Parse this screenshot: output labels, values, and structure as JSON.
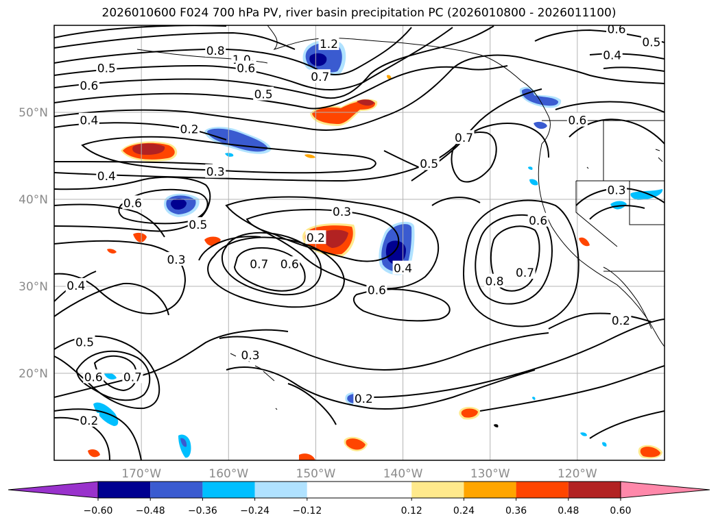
{
  "chart_data": {
    "type": "contour",
    "title": "2026010600 F024 700 hPa PV, river basin precipitation PC (2026010800 - 2026011100)",
    "x_ticks": [
      "170°W",
      "160°W",
      "150°W",
      "140°W",
      "130°W",
      "120°W"
    ],
    "x_tick_values": [
      -170,
      -160,
      -150,
      -140,
      -130,
      -120
    ],
    "y_ticks": [
      "50°N",
      "40°N",
      "30°N",
      "20°N"
    ],
    "y_tick_values": [
      50,
      40,
      30,
      20
    ],
    "xlim": [
      -180,
      -110
    ],
    "ylim": [
      10,
      60
    ],
    "grid": true,
    "contour_labels": [
      {
        "text": "1.0",
        "lon": -158.5,
        "lat": 56.0
      },
      {
        "text": "0.8",
        "lon": -161.5,
        "lat": 57.0
      },
      {
        "text": "1.2",
        "lon": -148.5,
        "lat": 57.8
      },
      {
        "text": "0.6",
        "lon": -158.0,
        "lat": 55.0
      },
      {
        "text": "0.7",
        "lon": -149.5,
        "lat": 54.0
      },
      {
        "text": "0.5",
        "lon": -174.0,
        "lat": 55.0
      },
      {
        "text": "0.6",
        "lon": -176.0,
        "lat": 53.0
      },
      {
        "text": "0.5",
        "lon": -156.0,
        "lat": 52.0
      },
      {
        "text": "0.4",
        "lon": -176.0,
        "lat": 49.0
      },
      {
        "text": "0.2",
        "lon": -164.5,
        "lat": 48.0
      },
      {
        "text": "0.4",
        "lon": -174.0,
        "lat": 42.6
      },
      {
        "text": "0.3",
        "lon": -161.5,
        "lat": 43.1
      },
      {
        "text": "0.6",
        "lon": -171.0,
        "lat": 39.5
      },
      {
        "text": "0.5",
        "lon": -163.5,
        "lat": 37.0
      },
      {
        "text": "0.3",
        "lon": -166.0,
        "lat": 33.0
      },
      {
        "text": "0.2",
        "lon": -150.0,
        "lat": 35.5
      },
      {
        "text": "0.3",
        "lon": -147.0,
        "lat": 38.5
      },
      {
        "text": "0.7",
        "lon": -156.5,
        "lat": 32.5
      },
      {
        "text": "0.6",
        "lon": -153.0,
        "lat": 32.5
      },
      {
        "text": "0.4",
        "lon": -140.0,
        "lat": 32.0
      },
      {
        "text": "0.6",
        "lon": -143.0,
        "lat": 29.5
      },
      {
        "text": "0.5",
        "lon": -137.0,
        "lat": 44.0
      },
      {
        "text": "0.7",
        "lon": -133.0,
        "lat": 47.0
      },
      {
        "text": "0.6",
        "lon": -120.0,
        "lat": 49.0
      },
      {
        "text": "0.6",
        "lon": -124.5,
        "lat": 37.5
      },
      {
        "text": "0.8",
        "lon": -129.5,
        "lat": 30.5
      },
      {
        "text": "0.7",
        "lon": -126.0,
        "lat": 31.5
      },
      {
        "text": "0.3",
        "lon": -115.5,
        "lat": 41.0
      },
      {
        "text": "0.2",
        "lon": -115.0,
        "lat": 26.0
      },
      {
        "text": "0.2",
        "lon": -144.5,
        "lat": 17.0
      },
      {
        "text": "0.6",
        "lon": -115.5,
        "lat": 59.5
      },
      {
        "text": "0.5",
        "lon": -111.5,
        "lat": 58.0
      },
      {
        "text": "0.4",
        "lon": -116.0,
        "lat": 56.5
      },
      {
        "text": "0.4",
        "lon": -177.5,
        "lat": 30.0
      },
      {
        "text": "0.5",
        "lon": -176.5,
        "lat": 23.5
      },
      {
        "text": "0.6",
        "lon": -175.5,
        "lat": 19.5
      },
      {
        "text": "0.7",
        "lon": -171.0,
        "lat": 19.5
      },
      {
        "text": "0.3",
        "lon": -157.5,
        "lat": 22.0
      },
      {
        "text": "0.2",
        "lon": -176.0,
        "lat": 14.5
      }
    ],
    "shaded_regions": [
      {
        "name": "blue-alaska-gulf",
        "value": -0.48,
        "lon": -149.5,
        "lat": 56.3
      },
      {
        "name": "blue-west-46n",
        "value": -0.36,
        "lon": -157.5,
        "lat": 47.0
      },
      {
        "name": "blue-39n",
        "value": -0.48,
        "lon": -166.0,
        "lat": 39.0
      },
      {
        "name": "blue-34n",
        "value": -0.6,
        "lon": -141.0,
        "lat": 34.0
      },
      {
        "name": "blue-bc-coast",
        "value": -0.36,
        "lon": -123.0,
        "lat": 50.0
      },
      {
        "name": "blue-16n",
        "value": -0.36,
        "lon": -145.0,
        "lat": 17.0
      },
      {
        "name": "red-46n",
        "value": 0.48,
        "lon": -170.5,
        "lat": 45.5
      },
      {
        "name": "red-50n",
        "value": 0.36,
        "lon": -147.0,
        "lat": 50.5
      },
      {
        "name": "red-35n",
        "value": 0.48,
        "lon": -149.0,
        "lat": 35.0
      },
      {
        "name": "red-14n",
        "value": 0.36,
        "lon": -131.5,
        "lat": 15.0
      }
    ],
    "colorbar": {
      "ticks": [
        "−0.60",
        "−0.48",
        "−0.36",
        "−0.24",
        "−0.12",
        "0.12",
        "0.24",
        "0.36",
        "0.48",
        "0.60"
      ],
      "boundaries": [
        -0.6,
        -0.48,
        -0.36,
        -0.24,
        -0.12,
        0.12,
        0.24,
        0.36,
        0.48,
        0.6
      ],
      "colors": [
        "#9932cc",
        "#000090",
        "#3a5bd0",
        "#00bfff",
        "#b0e2ff",
        "#ffffff",
        "#ffe98c",
        "#ffa500",
        "#ff4500",
        "#b22222",
        "#ff88aa"
      ]
    }
  }
}
